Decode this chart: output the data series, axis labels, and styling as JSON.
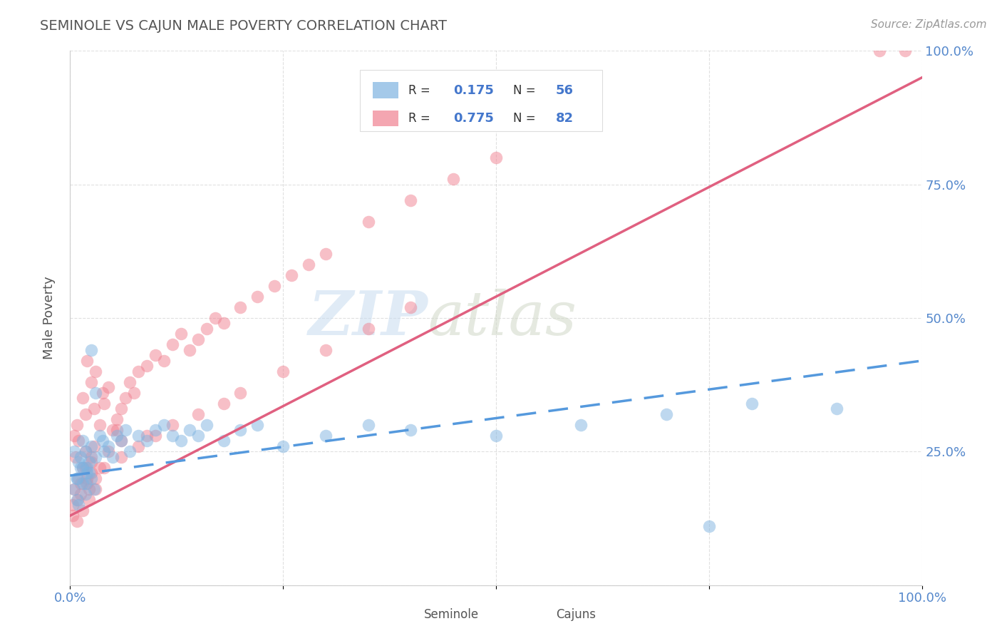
{
  "title": "SEMINOLE VS CAJUN MALE POVERTY CORRELATION CHART",
  "source_text": "Source: ZipAtlas.com",
  "ylabel": "Male Poverty",
  "xlim": [
    0,
    1
  ],
  "ylim": [
    0,
    1
  ],
  "xticks": [
    0,
    0.25,
    0.5,
    0.75,
    1.0
  ],
  "yticks": [
    0,
    0.25,
    0.5,
    0.75,
    1.0
  ],
  "xticklabels": [
    "0.0%",
    "",
    "",
    "",
    "100.0%"
  ],
  "yticklabels_right": [
    "",
    "25.0%",
    "50.0%",
    "75.0%",
    "100.0%"
  ],
  "seminole_color": "#7EB3E0",
  "cajun_color": "#F08090",
  "seminole_R": 0.175,
  "seminole_N": 56,
  "cajun_R": 0.775,
  "cajun_N": 82,
  "watermark_zip": "ZIP",
  "watermark_atlas": "atlas",
  "background_color": "#FFFFFF",
  "grid_color": "#CCCCCC",
  "title_color": "#555555",
  "tick_color": "#5588CC",
  "legend_text_color": "#333333",
  "legend_R_color": "#4477CC",
  "cajun_line_color": "#E06080",
  "seminole_line_color": "#5599DD",
  "seminole_scatter": {
    "x": [
      0.005,
      0.008,
      0.01,
      0.012,
      0.015,
      0.018,
      0.02,
      0.022,
      0.025,
      0.028,
      0.005,
      0.008,
      0.012,
      0.015,
      0.018,
      0.022,
      0.025,
      0.03,
      0.008,
      0.01,
      0.015,
      0.018,
      0.02,
      0.025,
      0.03,
      0.035,
      0.038,
      0.04,
      0.045,
      0.05,
      0.055,
      0.06,
      0.065,
      0.07,
      0.08,
      0.09,
      0.1,
      0.11,
      0.12,
      0.13,
      0.14,
      0.15,
      0.16,
      0.18,
      0.2,
      0.22,
      0.25,
      0.3,
      0.35,
      0.4,
      0.5,
      0.6,
      0.7,
      0.8,
      0.9,
      0.75
    ],
    "y": [
      0.18,
      0.2,
      0.15,
      0.22,
      0.19,
      0.17,
      0.21,
      0.23,
      0.2,
      0.18,
      0.25,
      0.16,
      0.24,
      0.22,
      0.19,
      0.21,
      0.44,
      0.36,
      0.2,
      0.23,
      0.27,
      0.25,
      0.22,
      0.26,
      0.24,
      0.28,
      0.27,
      0.25,
      0.26,
      0.24,
      0.28,
      0.27,
      0.29,
      0.25,
      0.28,
      0.27,
      0.29,
      0.3,
      0.28,
      0.27,
      0.29,
      0.28,
      0.3,
      0.27,
      0.29,
      0.3,
      0.26,
      0.28,
      0.3,
      0.29,
      0.28,
      0.3,
      0.32,
      0.34,
      0.33,
      0.11
    ]
  },
  "cajun_scatter": {
    "x": [
      0.003,
      0.005,
      0.008,
      0.01,
      0.012,
      0.015,
      0.018,
      0.02,
      0.022,
      0.025,
      0.003,
      0.006,
      0.009,
      0.012,
      0.015,
      0.018,
      0.022,
      0.025,
      0.028,
      0.03,
      0.005,
      0.008,
      0.01,
      0.015,
      0.018,
      0.02,
      0.025,
      0.028,
      0.03,
      0.035,
      0.038,
      0.04,
      0.045,
      0.05,
      0.055,
      0.06,
      0.065,
      0.07,
      0.075,
      0.08,
      0.09,
      0.1,
      0.11,
      0.12,
      0.13,
      0.14,
      0.15,
      0.16,
      0.17,
      0.18,
      0.2,
      0.22,
      0.24,
      0.26,
      0.28,
      0.3,
      0.35,
      0.4,
      0.45,
      0.5,
      0.06,
      0.045,
      0.055,
      0.035,
      0.025,
      0.08,
      0.1,
      0.12,
      0.15,
      0.18,
      0.2,
      0.25,
      0.3,
      0.35,
      0.4,
      0.03,
      0.02,
      0.04,
      0.06,
      0.09,
      0.95,
      0.98
    ],
    "y": [
      0.15,
      0.18,
      0.12,
      0.2,
      0.17,
      0.14,
      0.22,
      0.19,
      0.16,
      0.21,
      0.13,
      0.24,
      0.16,
      0.19,
      0.22,
      0.25,
      0.18,
      0.23,
      0.26,
      0.2,
      0.28,
      0.3,
      0.27,
      0.35,
      0.32,
      0.42,
      0.38,
      0.33,
      0.4,
      0.3,
      0.36,
      0.34,
      0.37,
      0.29,
      0.31,
      0.33,
      0.35,
      0.38,
      0.36,
      0.4,
      0.41,
      0.43,
      0.42,
      0.45,
      0.47,
      0.44,
      0.46,
      0.48,
      0.5,
      0.49,
      0.52,
      0.54,
      0.56,
      0.58,
      0.6,
      0.62,
      0.68,
      0.72,
      0.76,
      0.8,
      0.27,
      0.25,
      0.29,
      0.22,
      0.24,
      0.26,
      0.28,
      0.3,
      0.32,
      0.34,
      0.36,
      0.4,
      0.44,
      0.48,
      0.52,
      0.18,
      0.2,
      0.22,
      0.24,
      0.28,
      1.0,
      1.0
    ]
  },
  "cajun_line": {
    "x0": 0.0,
    "y0": 0.13,
    "x1": 1.0,
    "y1": 0.95
  },
  "seminole_line": {
    "x0": 0.0,
    "y0": 0.205,
    "x1": 1.0,
    "y1": 0.42
  }
}
